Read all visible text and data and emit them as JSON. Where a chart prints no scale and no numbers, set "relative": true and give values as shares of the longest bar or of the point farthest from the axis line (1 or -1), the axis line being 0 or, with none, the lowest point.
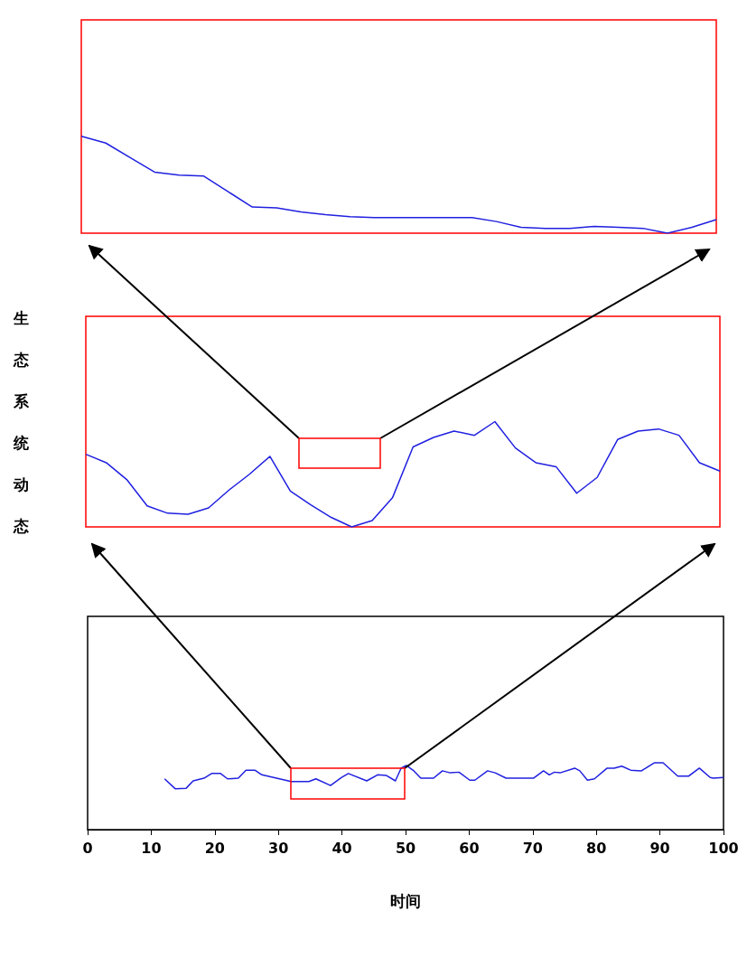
{
  "chart_data": [
    {
      "type": "line",
      "relative": true,
      "tick_labels": false,
      "grid": false,
      "marker": "none",
      "categories": [
        null,
        null,
        null,
        null,
        null,
        null,
        null,
        null,
        null,
        null,
        null,
        null,
        null,
        null,
        null,
        null,
        null,
        null,
        null,
        null,
        null,
        null,
        null,
        null,
        null,
        null,
        null
      ],
      "series": [
        {
          "color": "#2020e0",
          "values": [
            1.0,
            0.93,
            0.78,
            0.63,
            0.6,
            0.59,
            0.43,
            0.27,
            0.26,
            0.22,
            0.19,
            0.17,
            0.16,
            0.16,
            0.16,
            0.16,
            0.16,
            0.12,
            0.06,
            0.05,
            0.05,
            0.07,
            0.06,
            0.05,
            0,
            0.06,
            0.14
          ]
        }
      ]
    },
    {
      "type": "line",
      "relative": true,
      "tick_labels": false,
      "grid": false,
      "marker": "none",
      "ylabel": "生态系统动态",
      "categories": [
        null,
        null,
        null,
        null,
        null,
        null,
        null,
        null,
        null,
        null,
        null,
        null,
        null,
        null,
        null,
        null,
        null,
        null,
        null,
        null,
        null,
        null,
        null,
        null,
        null,
        null,
        null,
        null,
        null,
        null,
        null,
        null
      ],
      "series": [
        {
          "color": "#2020e0",
          "values": [
            0.69,
            0.61,
            0.45,
            0.2,
            0.13,
            0.12,
            0.18,
            0.35,
            0.5,
            0.67,
            0.34,
            0.21,
            0.09,
            0,
            0.06,
            0.28,
            0.76,
            0.85,
            0.91,
            0.87,
            1.0,
            0.75,
            0.61,
            0.57,
            0.32,
            0.47,
            0.83,
            0.91,
            0.93,
            0.87,
            0.61,
            0.53
          ]
        }
      ]
    },
    {
      "type": "line",
      "relative": true,
      "tick_labels": "x",
      "grid": false,
      "marker": "none",
      "xlabel": "时间",
      "xlim": [
        0,
        100
      ],
      "xticks": [
        0,
        10,
        20,
        30,
        40,
        50,
        60,
        70,
        80,
        90,
        100
      ],
      "series": [
        {
          "color": "#2020e0",
          "x": [
            12.1,
            13.8,
            15.5,
            16.6,
            18.3,
            19.5,
            20.9,
            22.0,
            23.7,
            24.9,
            26.3,
            27.4,
            29.7,
            31.1,
            32.0,
            34.8,
            35.9,
            38.2,
            39.9,
            41.0,
            43.9,
            45.6,
            47.0,
            48.4,
            49.3,
            50.1,
            51.3,
            52.4,
            54.4,
            55.8,
            57.0,
            58.4,
            60.1,
            60.9,
            62.9,
            64.1,
            65.8,
            70.1,
            71.7,
            72.6,
            73.4,
            74.3,
            76.6,
            77.4,
            78.6,
            79.7,
            81.7,
            82.8,
            84.0,
            85.4,
            87.1,
            89.1,
            90.5,
            92.8,
            94.5,
            96.2,
            97.9,
            98.4,
            100
          ],
          "values": [
            0.76,
            0.61,
            0.62,
            0.73,
            0.77,
            0.84,
            0.84,
            0.76,
            0.77,
            0.89,
            0.89,
            0.82,
            0.77,
            0.74,
            0.72,
            0.72,
            0.76,
            0.66,
            0.78,
            0.84,
            0.73,
            0.82,
            0.81,
            0.73,
            0.92,
            0.96,
            0.88,
            0.77,
            0.77,
            0.88,
            0.85,
            0.86,
            0.74,
            0.74,
            0.88,
            0.85,
            0.77,
            0.77,
            0.88,
            0.82,
            0.86,
            0.85,
            0.92,
            0.88,
            0.74,
            0.76,
            0.92,
            0.92,
            0.95,
            0.89,
            0.88,
            1.0,
            1.0,
            0.8,
            0.8,
            0.92,
            0.78,
            0.77,
            0.78
          ]
        }
      ]
    }
  ]
}
